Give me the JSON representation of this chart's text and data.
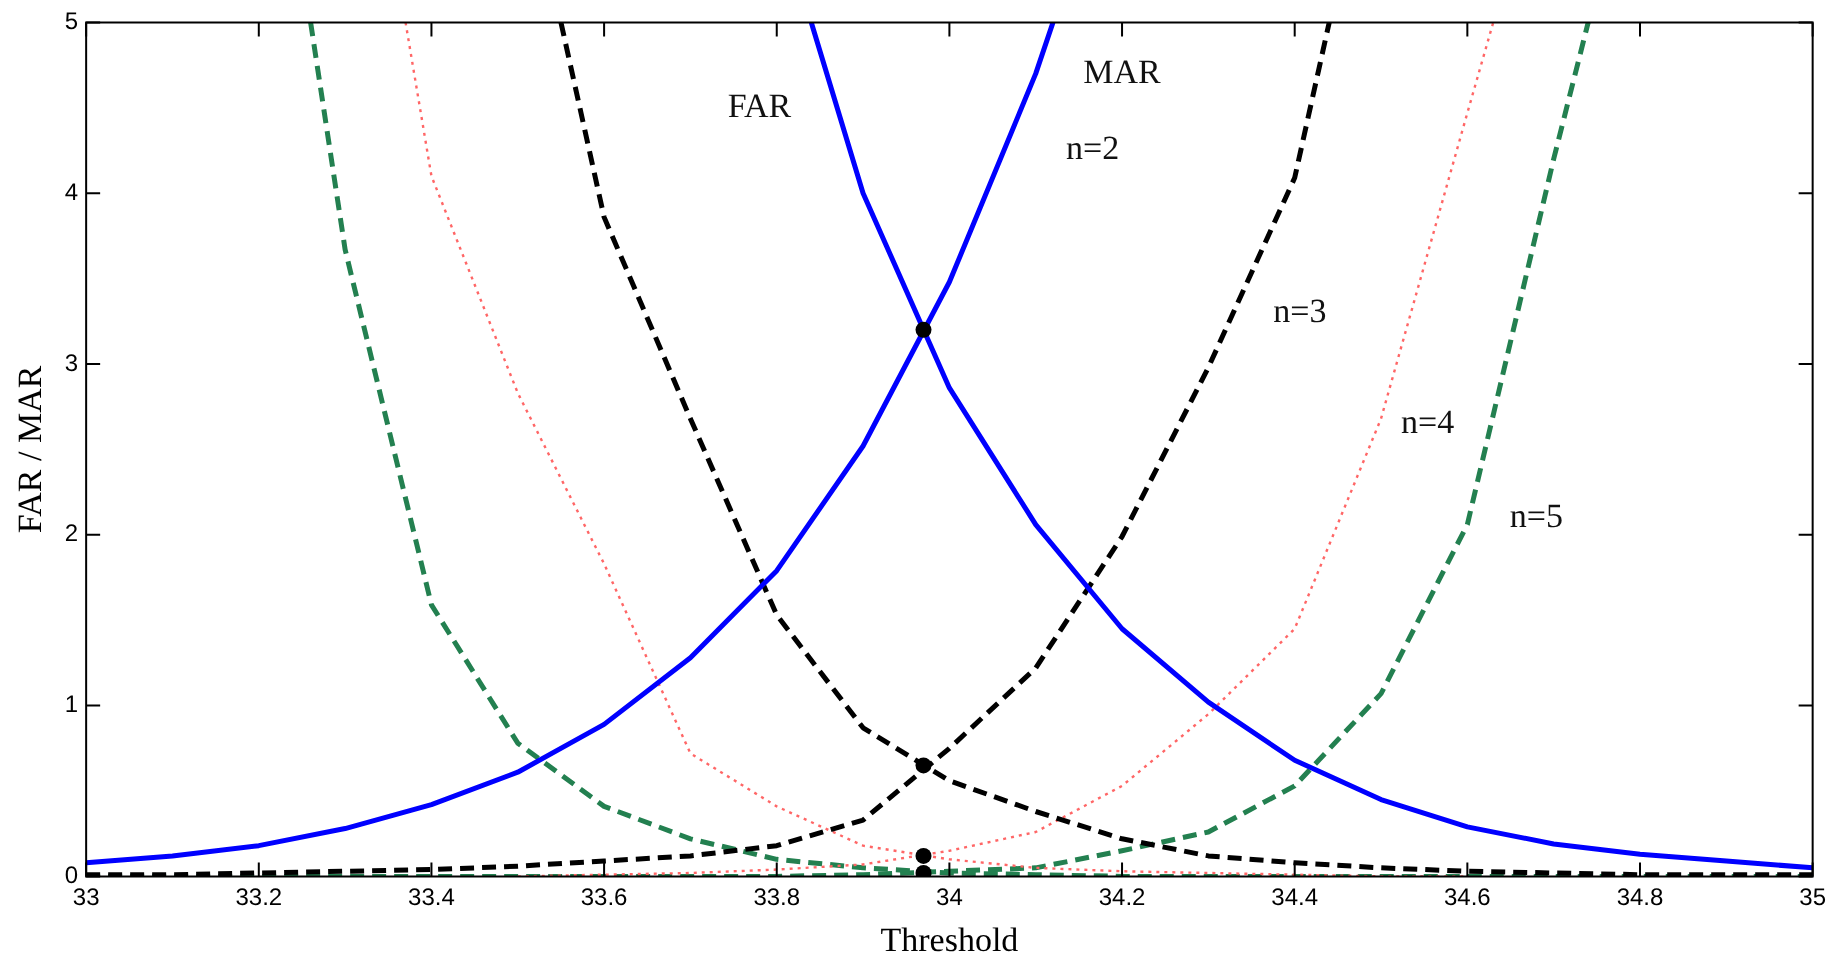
{
  "chart_data": {
    "type": "line",
    "xlabel": "Threshold",
    "ylabel": "FAR / MAR",
    "xlim": [
      33,
      35
    ],
    "ylim": [
      0,
      5
    ],
    "xticks": [
      33,
      33.2,
      33.4,
      33.6,
      33.8,
      34,
      34.2,
      34.4,
      34.6,
      34.8,
      35
    ],
    "yticks": [
      0,
      1,
      2,
      3,
      4,
      5
    ],
    "series": [
      {
        "color": "#0000ff",
        "line_style": "solid",
        "x": [
          33,
          33.1,
          33.2,
          33.3,
          33.4,
          33.5,
          33.6,
          33.7,
          33.8,
          33.9,
          34,
          34.1,
          34.12
        ],
        "values": [
          0.08,
          0.12,
          0.18,
          0.28,
          0.42,
          0.61,
          0.89,
          1.28,
          1.79,
          2.52,
          3.48,
          4.7,
          5
        ]
      },
      {
        "color": "#0000ff",
        "line_style": "solid",
        "x": [
          33.84,
          33.9,
          34,
          34.1,
          34.2,
          34.3,
          34.4,
          34.5,
          34.6,
          34.7,
          34.8,
          34.9,
          35
        ],
        "values": [
          5,
          4.0,
          2.86,
          2.06,
          1.45,
          1.02,
          0.68,
          0.45,
          0.29,
          0.19,
          0.13,
          0.09,
          0.05
        ]
      },
      {
        "color": "#000000",
        "line_style": "dashed",
        "x": [
          33.55,
          33.6,
          33.7,
          33.8,
          33.9,
          34,
          34.1,
          34.2,
          34.3,
          34.4,
          34.5,
          34.6,
          34.7,
          34.8,
          34.9,
          35
        ],
        "values": [
          5,
          3.86,
          2.68,
          1.53,
          0.87,
          0.56,
          0.38,
          0.22,
          0.12,
          0.08,
          0.05,
          0.03,
          0.02,
          0.01,
          0.01,
          0.01
        ]
      },
      {
        "color": "#000000",
        "line_style": "dashed",
        "x": [
          33,
          33.1,
          33.2,
          33.3,
          33.4,
          33.5,
          33.6,
          33.7,
          33.8,
          33.9,
          34,
          34.1,
          34.2,
          34.3,
          34.4,
          34.44
        ],
        "values": [
          0.01,
          0.01,
          0.02,
          0.03,
          0.04,
          0.06,
          0.09,
          0.12,
          0.18,
          0.33,
          0.75,
          1.22,
          1.99,
          2.98,
          4.09,
          5
        ]
      },
      {
        "color": "#ff6666",
        "line_style": "dotted",
        "x": [
          33.37,
          33.4,
          33.5,
          33.6,
          33.7,
          33.8,
          33.9,
          34,
          34.1,
          34.2,
          34.3,
          34.4,
          34.5,
          34.6
        ],
        "values": [
          5,
          4.1,
          2.83,
          1.83,
          0.72,
          0.41,
          0.18,
          0.1,
          0.05,
          0.03,
          0.02,
          0.01,
          0,
          0
        ]
      },
      {
        "color": "#ff6666",
        "line_style": "dotted",
        "x": [
          33.5,
          33.6,
          33.7,
          33.8,
          33.9,
          34,
          34.1,
          34.2,
          34.3,
          34.4,
          34.5,
          34.6,
          34.63
        ],
        "values": [
          0,
          0.01,
          0.02,
          0.04,
          0.07,
          0.15,
          0.26,
          0.53,
          0.95,
          1.45,
          2.68,
          4.47,
          5
        ]
      },
      {
        "color": "#238050",
        "line_style": "dashed",
        "x": [
          33.26,
          33.3,
          33.4,
          33.5,
          33.6,
          33.7,
          33.8,
          33.9,
          34,
          34.1,
          34.2,
          34.3,
          34.4,
          34.5,
          34.6,
          34.7,
          34.8,
          34.9,
          35
        ],
        "values": [
          5,
          3.67,
          1.59,
          0.78,
          0.41,
          0.22,
          0.1,
          0.05,
          0.02,
          0.01,
          0,
          0,
          0,
          0,
          0,
          0,
          0,
          0,
          0
        ]
      },
      {
        "color": "#238050",
        "line_style": "dashed",
        "x": [
          33,
          33.1,
          33.2,
          33.3,
          33.4,
          33.5,
          33.6,
          33.7,
          33.8,
          33.9,
          34,
          34.1,
          34.2,
          34.3,
          34.4,
          34.5,
          34.6,
          34.7,
          34.74
        ],
        "values": [
          0,
          0,
          0,
          0,
          0,
          0,
          0,
          0,
          0,
          0.01,
          0.03,
          0.05,
          0.15,
          0.26,
          0.53,
          1.07,
          2.06,
          4.2,
          5
        ]
      },
      {
        "type": "scatter",
        "color": "#000000",
        "marker": "circle",
        "x": [
          33.97,
          33.97,
          33.97,
          33.97
        ],
        "values": [
          3.2,
          0.65,
          0.12,
          0.02
        ]
      }
    ],
    "annotations": [
      "FAR",
      "MAR",
      "n=2",
      "n=3",
      "n=4",
      "n=5"
    ]
  }
}
